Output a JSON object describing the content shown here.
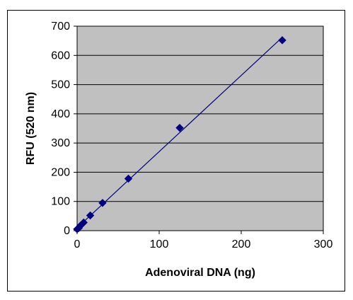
{
  "chart_data": {
    "type": "scatter",
    "title": "",
    "xlabel": "Adenoviral DNA (ng)",
    "ylabel": "RFU (520 nm)",
    "xlim": [
      0,
      300
    ],
    "ylim": [
      0,
      700
    ],
    "x_ticks": [
      "0",
      "100",
      "200",
      "300"
    ],
    "y_ticks": [
      "0",
      "100",
      "200",
      "300",
      "400",
      "500",
      "600",
      "700"
    ],
    "grid": "horizontal",
    "legend": "none",
    "trendline": true,
    "series": [
      {
        "x": [
          0,
          2,
          4,
          8,
          16,
          31,
          62.5,
          125,
          250
        ],
        "y": [
          5,
          9,
          17,
          28,
          52,
          95,
          178,
          352,
          652
        ],
        "color": "#000080",
        "marker": "diamond"
      }
    ],
    "colors": {
      "plot_background": "#c0c0c0",
      "gridline": "#000000",
      "marker": "#000080",
      "trendline": "#000080"
    }
  }
}
